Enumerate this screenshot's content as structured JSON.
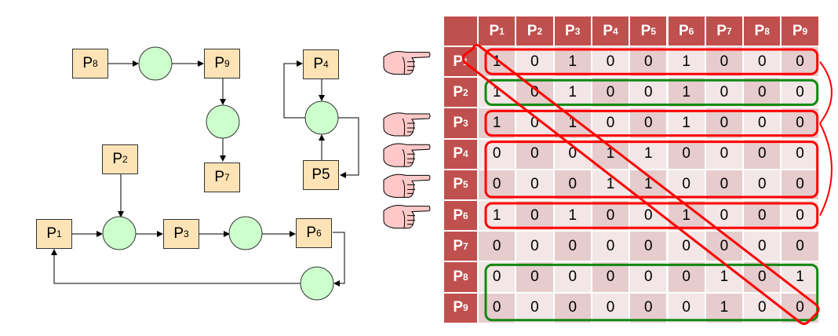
{
  "graph": {
    "processes": [
      {
        "id": "p1",
        "base": "P",
        "sub": "1"
      },
      {
        "id": "p2",
        "base": "P",
        "sub": "2"
      },
      {
        "id": "p3",
        "base": "P",
        "sub": "3"
      },
      {
        "id": "p4",
        "base": "P",
        "sub": "4"
      },
      {
        "id": "p5",
        "base": "P5",
        "sub": ""
      },
      {
        "id": "p6",
        "base": "P",
        "sub": "6"
      },
      {
        "id": "p7",
        "base": "P",
        "sub": "7"
      },
      {
        "id": "p8",
        "base": "P",
        "sub": "8"
      },
      {
        "id": "p9",
        "base": "P",
        "sub": "9"
      }
    ],
    "edges": [
      [
        "P8",
        "R"
      ],
      [
        "R",
        "P9"
      ],
      [
        "P9",
        "R"
      ],
      [
        "R",
        "P7"
      ],
      [
        "P4",
        "R"
      ],
      [
        "R",
        "P4"
      ],
      [
        "R",
        "P5"
      ],
      [
        "P5",
        "R"
      ],
      [
        "P2",
        "R"
      ],
      [
        "P1",
        "R"
      ],
      [
        "R",
        "P3"
      ],
      [
        "P3",
        "R"
      ],
      [
        "R",
        "P6"
      ],
      [
        "P6",
        "R"
      ],
      [
        "R",
        "P1"
      ]
    ],
    "colors": {
      "process": "#fde3b5",
      "resource": "#ccffcc"
    }
  },
  "matrix": {
    "labels": [
      "1",
      "2",
      "3",
      "4",
      "5",
      "6",
      "7",
      "8",
      "9"
    ],
    "prefix": "P",
    "rows": [
      [
        1,
        0,
        1,
        0,
        0,
        1,
        0,
        0,
        0
      ],
      [
        1,
        0,
        1,
        0,
        0,
        1,
        0,
        0,
        0
      ],
      [
        1,
        0,
        1,
        0,
        0,
        1,
        0,
        0,
        0
      ],
      [
        0,
        0,
        0,
        1,
        1,
        0,
        0,
        0,
        0
      ],
      [
        0,
        0,
        0,
        1,
        1,
        0,
        0,
        0,
        0
      ],
      [
        1,
        0,
        1,
        0,
        0,
        1,
        0,
        0,
        0
      ],
      [
        0,
        0,
        0,
        0,
        0,
        0,
        0,
        0,
        0
      ],
      [
        0,
        0,
        0,
        0,
        0,
        0,
        1,
        0,
        1
      ],
      [
        0,
        0,
        0,
        0,
        0,
        0,
        1,
        0,
        0
      ]
    ],
    "pointed_rows": [
      1,
      3,
      4,
      5,
      6
    ],
    "red_groups": [
      [
        1,
        1
      ],
      [
        3,
        3
      ],
      [
        4,
        5
      ],
      [
        6,
        6
      ]
    ],
    "green_groups": [
      [
        2,
        2
      ],
      [
        8,
        9
      ]
    ],
    "colors": {
      "header": "#c0504d",
      "cell_dark": "#e6cccd",
      "cell_light": "#f2e6e6",
      "red": "#ff0000",
      "green": "#118811",
      "hand": "#ffc8c8"
    }
  }
}
